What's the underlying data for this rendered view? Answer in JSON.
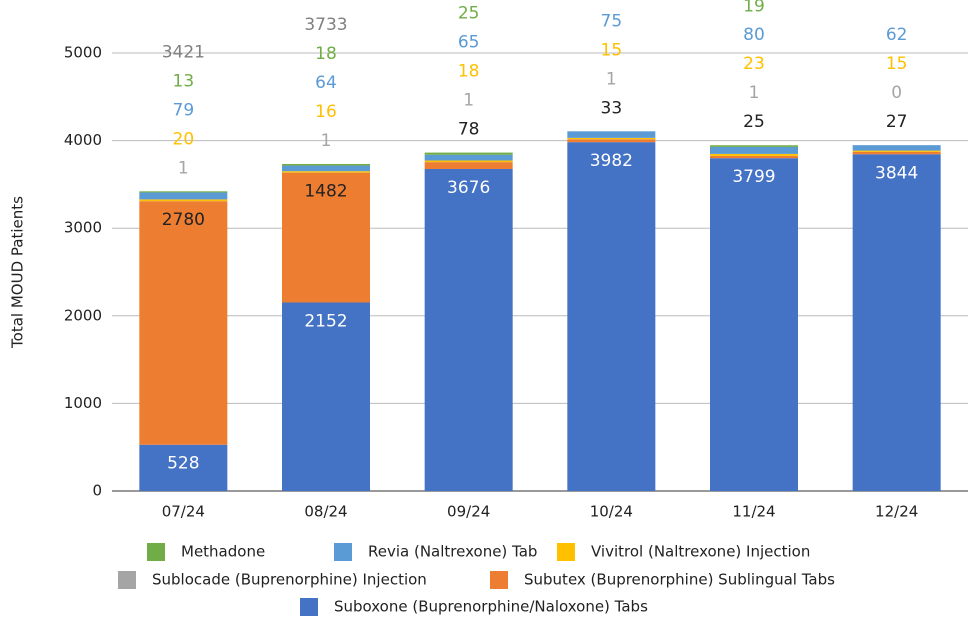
{
  "chart_data": {
    "type": "stacked_bar",
    "y_label": "Total MOUD Patients",
    "categories": [
      "07/24",
      "08/24",
      "09/24",
      "10/24",
      "11/24",
      "12/24"
    ],
    "series": [
      {
        "name": "Suboxone (Buprenorphine/Naloxone) Tabs",
        "color": "#4472c4",
        "label_color": "#ffffff",
        "values": [
          528,
          2152,
          3676,
          3982,
          3799,
          3844
        ]
      },
      {
        "name": "Subutex (Buprenorphine) Sublingual Tabs",
        "color": "#ed7d31",
        "label_color": "#222222",
        "values": [
          2780,
          1482,
          78,
          33,
          25,
          27
        ]
      },
      {
        "name": "Sublocade (Buprenorphine) Injection",
        "color": "#a5a5a5",
        "label_color": "#a5a5a5",
        "values": [
          1,
          1,
          1,
          1,
          1,
          0
        ]
      },
      {
        "name": "Vivitrol (Naltrexone) Injection",
        "color": "#ffc000",
        "label_color": "#ffc000",
        "values": [
          20,
          16,
          18,
          15,
          23,
          15
        ]
      },
      {
        "name": "Revia (Naltrexone) Tab",
        "color": "#5b9bd5",
        "label_color": "#5b9bd5",
        "values": [
          79,
          64,
          65,
          75,
          80,
          62
        ]
      },
      {
        "name": "Methadone",
        "color": "#70ad47",
        "label_color": "#70ad47",
        "values": [
          13,
          18,
          25,
          null,
          19,
          null
        ]
      }
    ],
    "totals": [
      3421,
      3733,
      null,
      null,
      null,
      null
    ],
    "total_color": "#808080",
    "ylim": [
      0,
      5000
    ],
    "yticks": [
      0,
      1000,
      2000,
      3000,
      4000,
      5000
    ],
    "grid": true
  }
}
